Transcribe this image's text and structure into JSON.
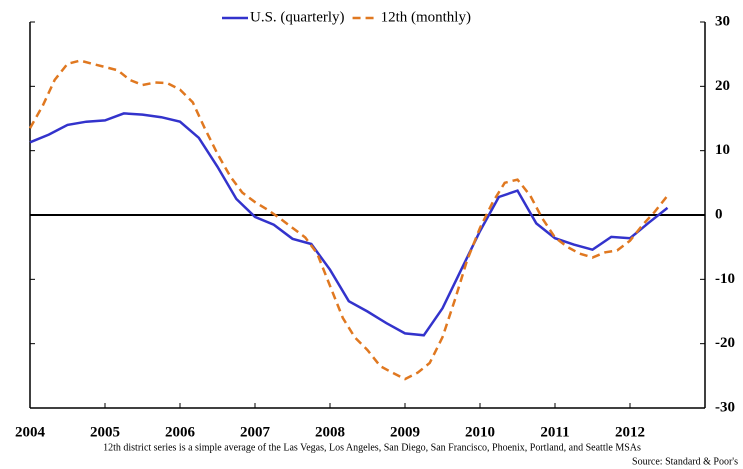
{
  "chart_data": {
    "type": "line",
    "legend": "top",
    "xlim": [
      2004,
      2013
    ],
    "xticks": [
      2004,
      2005,
      2006,
      2007,
      2008,
      2009,
      2010,
      2011,
      2012
    ],
    "ylim": [
      -30,
      30
    ],
    "yticks": [
      -30,
      -20,
      -10,
      0,
      10,
      20,
      30
    ],
    "note": "12th district  series  is  a  simple  average of the Las Vegas,  Los Angeles,  San Diego,  San Francisco,  Phoenix,  Portland,  and  Seattle MSAs",
    "source": "Source: Standard & Poor's",
    "series": [
      {
        "name": "U.S. (quarterly)",
        "color": "#3333cc",
        "dash": false,
        "x": [
          2004.0,
          2004.25,
          2004.5,
          2004.75,
          2005.0,
          2005.25,
          2005.5,
          2005.75,
          2006.0,
          2006.25,
          2006.5,
          2006.75,
          2007.0,
          2007.25,
          2007.5,
          2007.75,
          2008.0,
          2008.25,
          2008.5,
          2008.75,
          2009.0,
          2009.25,
          2009.5,
          2009.75,
          2010.0,
          2010.25,
          2010.5,
          2010.75,
          2011.0,
          2011.25,
          2011.5,
          2011.75,
          2012.0,
          2012.25,
          2012.5
        ],
        "values": [
          11.3,
          12.5,
          14,
          14.5,
          14.7,
          15.8,
          15.6,
          15.2,
          14.5,
          12,
          7.5,
          2.5,
          -0.3,
          -1.5,
          -3.7,
          -4.5,
          -8.5,
          -13.4,
          -15,
          -16.8,
          -18.4,
          -18.7,
          -14.5,
          -8.5,
          -2.5,
          2.8,
          3.8,
          -1.3,
          -3.6,
          -4.6,
          -5.4,
          -3.4,
          -3.6,
          -1.2,
          1.1
        ]
      },
      {
        "name": "12th (monthly)",
        "color": "#e07820",
        "dash": true,
        "x": [
          2004.0,
          2004.17,
          2004.33,
          2004.5,
          2004.67,
          2004.83,
          2005.0,
          2005.17,
          2005.33,
          2005.5,
          2005.67,
          2005.83,
          2006.0,
          2006.17,
          2006.33,
          2006.5,
          2006.67,
          2006.83,
          2007.0,
          2007.17,
          2007.33,
          2007.5,
          2007.67,
          2007.83,
          2008.0,
          2008.17,
          2008.33,
          2008.5,
          2008.67,
          2008.83,
          2009.0,
          2009.17,
          2009.33,
          2009.5,
          2009.67,
          2009.83,
          2010.0,
          2010.17,
          2010.33,
          2010.5,
          2010.67,
          2010.83,
          2011.0,
          2011.17,
          2011.33,
          2011.5,
          2011.67,
          2011.83,
          2012.0,
          2012.17,
          2012.33,
          2012.5
        ],
        "values": [
          13.5,
          17,
          21,
          23.5,
          24,
          23.5,
          23,
          22.5,
          21,
          20.2,
          20.6,
          20.5,
          19.5,
          17.5,
          13.5,
          9.5,
          6,
          3.5,
          2,
          0.8,
          -0.5,
          -2,
          -3.5,
          -6,
          -11,
          -16,
          -19,
          -21,
          -23.5,
          -24.5,
          -25.5,
          -24.5,
          -23,
          -19,
          -13,
          -7,
          -2,
          2,
          5,
          5.5,
          3,
          -0.5,
          -3.5,
          -5,
          -6,
          -6.6,
          -5.8,
          -5.5,
          -4,
          -1.5,
          0.5,
          3
        ]
      }
    ]
  }
}
